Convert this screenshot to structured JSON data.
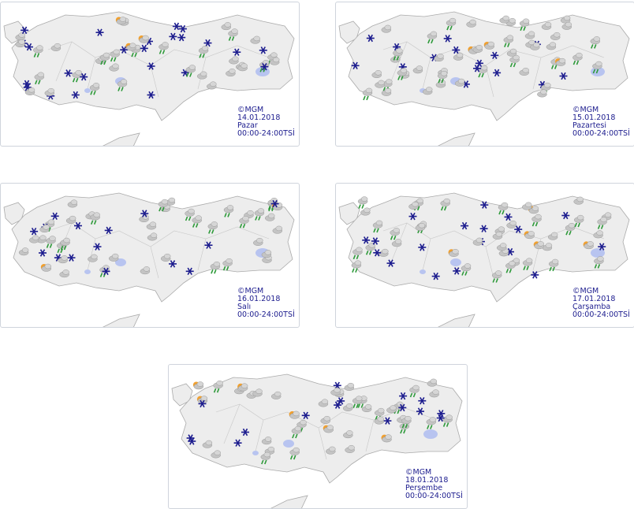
{
  "panels": [
    {
      "copyright": "©MGM",
      "date": "14.01.2018",
      "day": "Pazar",
      "time": "00:00-24:00TSİ"
    },
    {
      "copyright": "©MGM",
      "date": "15.01.2018",
      "day": "Pazartesi",
      "time": "00:00-24:00TSİ"
    },
    {
      "copyright": "©MGM",
      "date": "16.01.2018",
      "day": "Salı",
      "time": "00:00-24:00TSİ"
    },
    {
      "copyright": "©MGM",
      "date": "17.01.2018",
      "day": "Çarşamba",
      "time": "00:00-24:00TSİ"
    },
    {
      "copyright": "©MGM",
      "date": "18.01.2018",
      "day": "Perşembe",
      "time": "00:00-24:00TSİ"
    }
  ]
}
